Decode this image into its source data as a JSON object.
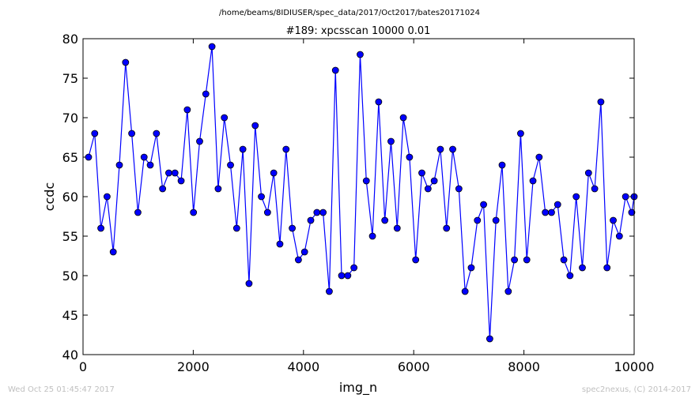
{
  "chart_data": {
    "type": "line",
    "suptitle": "/home/beams/8IDIUSER/spec_data/2017/Oct2017/bates20171024",
    "title": "#189: xpcsscan 10000 0.01",
    "xlabel": "img_n",
    "ylabel": "ccdc",
    "xlim": [
      0,
      10000
    ],
    "ylim": [
      40,
      80
    ],
    "xticks": [
      0,
      2000,
      4000,
      6000,
      8000,
      10000
    ],
    "yticks": [
      40,
      45,
      50,
      55,
      60,
      65,
      70,
      75,
      80
    ],
    "grid": false,
    "marker": "circle",
    "line_color": "#0000ff",
    "marker_color": "#0000ff",
    "series": [
      {
        "x": [
          100,
          212,
          324,
          436,
          548,
          660,
          772,
          884,
          996,
          1108,
          1220,
          1332,
          1444,
          1556,
          1668,
          1780,
          1892,
          2004,
          2116,
          2228,
          2340,
          2452,
          2564,
          2676,
          2788,
          2900,
          3012,
          3124,
          3236,
          3348,
          3460,
          3572,
          3684,
          3796,
          3908,
          4020,
          4132,
          4244,
          4356,
          4468,
          4580,
          4692,
          4804,
          4916,
          5028,
          5140,
          5252,
          5364,
          5476,
          5588,
          5700,
          5812,
          5924,
          6036,
          6148,
          6260,
          6372,
          6484,
          6596,
          6708,
          6820,
          6932,
          7044,
          7156,
          7268,
          7380,
          7492,
          7604,
          7716,
          7828,
          7940,
          8052,
          8164,
          8276,
          8388,
          8500,
          8612,
          8724,
          8836,
          8948,
          9060,
          9172,
          9284,
          9396,
          9508,
          9620,
          9732,
          9844,
          9956,
          10000
        ],
        "y": [
          65,
          68,
          56,
          60,
          53,
          64,
          77,
          68,
          58,
          65,
          64,
          68,
          61,
          63,
          63,
          62,
          71,
          58,
          67,
          73,
          79,
          61,
          70,
          64,
          56,
          66,
          49,
          69,
          60,
          58,
          63,
          54,
          66,
          56,
          52,
          53,
          57,
          58,
          58,
          48,
          76,
          50,
          50,
          51,
          78,
          62,
          55,
          72,
          57,
          67,
          56,
          70,
          65,
          52,
          63,
          61,
          62,
          66,
          56,
          66,
          61,
          48,
          51,
          57,
          59,
          42,
          57,
          64,
          48,
          52,
          68,
          52,
          62,
          65,
          58,
          58,
          59,
          52,
          50,
          60,
          51,
          63,
          61,
          72,
          51,
          57,
          55,
          60,
          58,
          60
        ]
      }
    ]
  },
  "footer": {
    "timestamp": "Wed Oct 25 01:45:47 2017",
    "credit": "spec2nexus, (C) 2014-2017"
  }
}
